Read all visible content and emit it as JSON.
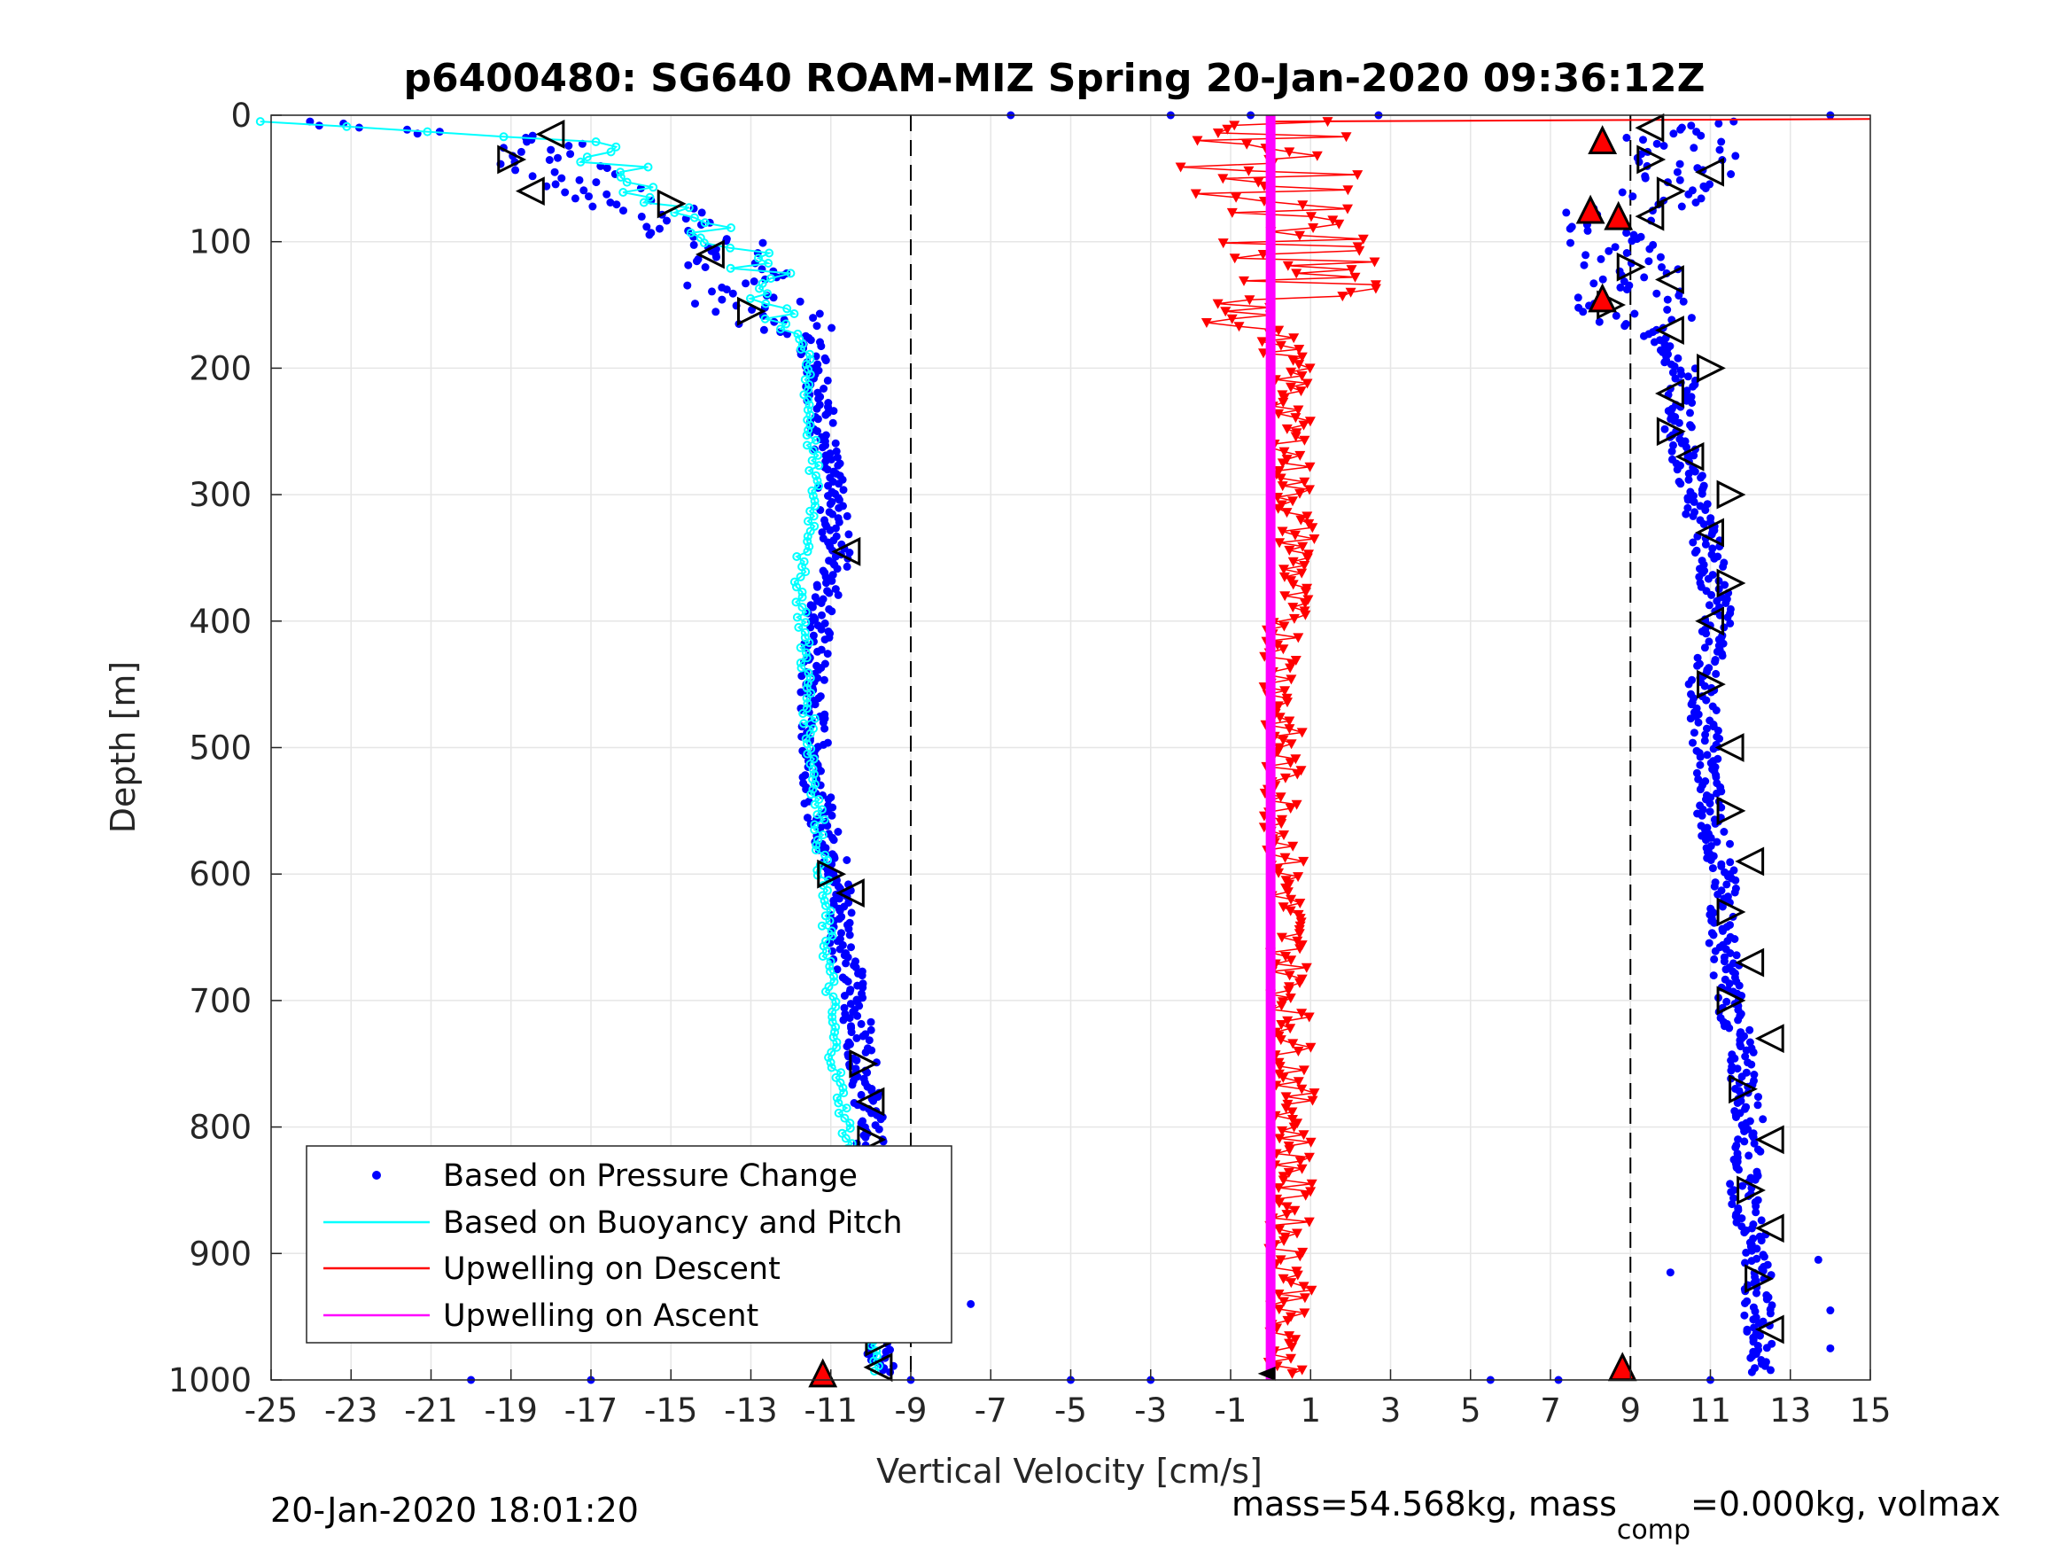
{
  "chart_data": {
    "type": "scatter",
    "title": "p6400480: SG640 ROAM-MIZ Spring 20-Jan-2020 09:36:12Z",
    "xlabel": "Vertical Velocity [cm/s]",
    "ylabel": "Depth [m]",
    "xlim": [
      -25,
      15
    ],
    "ylim": [
      0,
      1000
    ],
    "y_reversed": true,
    "grid": true,
    "x_ticks": [
      "-25",
      "-23",
      "-21",
      "-19",
      "-17",
      "-15",
      "-13",
      "-11",
      "-9",
      "-7",
      "-5",
      "-3",
      "-1",
      "1",
      "3",
      "5",
      "7",
      "9",
      "11",
      "13",
      "15"
    ],
    "y_ticks": [
      "0",
      "100",
      "200",
      "300",
      "400",
      "500",
      "600",
      "700",
      "800",
      "900",
      "1000"
    ],
    "reference_lines_x": [
      -9,
      9
    ],
    "legend": {
      "placement": "bottom-left",
      "entries": [
        "Based on Pressure Change",
        "Based on Buoyancy and Pitch",
        "Upwelling on Descent",
        "Upwelling on Ascent"
      ]
    },
    "series": [
      {
        "name": "Based on Pressure Change",
        "color": "#0000ff",
        "marker": "dot",
        "profiles": [
          {
            "segment": "descent",
            "depth": [
              5,
              20,
              40,
              60,
              80,
              100,
              120,
              150,
              180,
              200,
              250,
              300,
              350,
              400,
              450,
              500,
              550,
              600,
              650,
              700,
              750,
              800,
              850,
              900,
              950,
              995
            ],
            "velocity": [
              -24,
              -18,
              -18,
              -17,
              -15,
              -14,
              -13.5,
              -13,
              -11.5,
              -11.3,
              -11.2,
              -11,
              -10.8,
              -11.3,
              -11.5,
              -11.4,
              -11.3,
              -10.8,
              -10.7,
              -10.4,
              -10.2,
              -10,
              -10,
              -9.9,
              -9.8,
              -9.7
            ]
          },
          {
            "segment": "ascent",
            "depth": [
              5,
              20,
              40,
              60,
              80,
              100,
              120,
              150,
              180,
              200,
              250,
              300,
              350,
              400,
              450,
              500,
              550,
              600,
              650,
              700,
              750,
              800,
              850,
              900,
              950,
              995
            ],
            "velocity": [
              12,
              10,
              10.5,
              10,
              8.5,
              8.5,
              9,
              9,
              9.8,
              10.3,
              10.2,
              10.6,
              11,
              11.2,
              10.8,
              10.9,
              11,
              11.3,
              11.3,
              11.5,
              11.8,
              12,
              11.8,
              12.2,
              12.2,
              12.3
            ]
          }
        ]
      },
      {
        "name": "Based on Buoyancy and Pitch",
        "color": "#00ffff",
        "marker": "circle-line",
        "depth": [
          5,
          20,
          40,
          60,
          80,
          100,
          120,
          150,
          170,
          200,
          250,
          300,
          345,
          350,
          400,
          450,
          500,
          550,
          600,
          650,
          700,
          750,
          800,
          850,
          900,
          950,
          995
        ],
        "velocity": [
          -25,
          -17.5,
          -16.5,
          -15.5,
          -14.5,
          -13.5,
          -13,
          -12.2,
          -11.8,
          -11.6,
          -11.5,
          -11.4,
          -11.5,
          -11.8,
          -11.7,
          -11.6,
          -11.5,
          -11.3,
          -11.2,
          -11.1,
          -11,
          -10.9,
          -10.6,
          -10.4,
          -10.2,
          -10,
          -9.9
        ]
      },
      {
        "name": "Upwelling on Descent",
        "color": "#ff0000",
        "marker": "triangle-down",
        "depth": [
          5,
          20,
          30,
          40,
          60,
          80,
          100,
          120,
          140,
          160,
          200,
          250,
          300,
          350,
          400,
          450,
          500,
          550,
          600,
          650,
          700,
          750,
          800,
          850,
          900,
          930,
          960,
          990
        ],
        "velocity": [
          1,
          -1,
          -3,
          -2,
          -1,
          -2,
          -0.5,
          1,
          0,
          -1,
          0.5,
          0.5,
          0.7,
          1,
          0.2,
          0,
          0,
          0,
          0.2,
          0.4,
          0.5,
          0.7,
          0.8,
          0.6,
          0.3,
          1,
          -0.5,
          0.5
        ]
      },
      {
        "name": "Upwelling on Ascent",
        "color": "#ff00ff",
        "marker": "line",
        "depth": [
          0,
          1000
        ],
        "velocity": [
          0,
          0
        ]
      }
    ],
    "annotations": [
      {
        "type": "triangle-marker",
        "color": "#000000",
        "depth": [
          15,
          35,
          60,
          70,
          110,
          155,
          345,
          600,
          615,
          750,
          780,
          810,
          880,
          900,
          935,
          970,
          990
        ],
        "velocity": [
          -18,
          -19,
          -18.5,
          -15,
          -14,
          -13,
          -10.6,
          -11,
          -10.5,
          -10.2,
          -10,
          -10,
          -10,
          -9.8,
          -10,
          -9.8,
          -9.8
        ]
      },
      {
        "type": "triangle-marker",
        "color": "#000000",
        "depth": [
          10,
          35,
          45,
          60,
          80,
          120,
          130,
          150,
          170,
          200,
          220,
          250,
          270,
          300,
          330,
          370,
          400,
          450,
          500,
          550,
          590,
          630,
          670,
          700,
          730,
          770,
          810,
          850,
          880,
          920,
          960
        ],
        "velocity": [
          9.5,
          9.5,
          11,
          10,
          9.5,
          9,
          10,
          8.5,
          10,
          11,
          10,
          10,
          10.5,
          11.5,
          11,
          11.5,
          11,
          11,
          11.5,
          11.5,
          12,
          11.5,
          12,
          11.5,
          12.5,
          11.8,
          12.5,
          12,
          12.5,
          12.2,
          12.5
        ]
      },
      {
        "type": "filled-triangle",
        "color": "#ff0000",
        "depth": [
          20,
          75,
          80,
          145,
          995,
          990
        ],
        "velocity": [
          8.3,
          8.0,
          8.7,
          8.3,
          -11.2,
          8.8
        ]
      }
    ]
  },
  "footer": {
    "timestamp": "20-Jan-2020 18:01:20",
    "mass_prefix": "mass=54.568kg, mass",
    "mass_sub": "comp",
    "mass_suffix": "=0.000kg, volmax"
  }
}
